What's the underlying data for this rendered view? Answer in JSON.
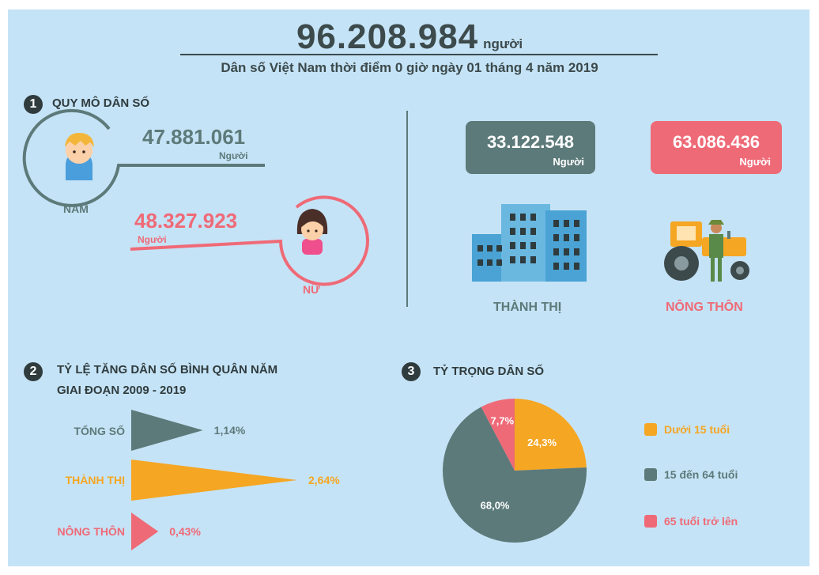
{
  "header": {
    "total": "96.208.984",
    "unit": "người",
    "subtitle": "Dân số Việt Nam thời điểm 0 giờ ngày 01 tháng 4 năm 2019"
  },
  "section1": {
    "badge": "1",
    "title": "QUY MÔ DÂN SỐ",
    "male": {
      "value": "47.881.061",
      "unit": "Người",
      "label": "NAM"
    },
    "female": {
      "value": "48.327.923",
      "unit": "Người",
      "label": "NỮ"
    },
    "urban": {
      "value": "33.122.548",
      "unit": "Người",
      "label": "THÀNH THỊ"
    },
    "rural": {
      "value": "63.086.436",
      "unit": "Người",
      "label": "NÔNG THÔN"
    }
  },
  "section2": {
    "badge": "2",
    "title_line1": "TỶ LỆ TĂNG DÂN SỐ BÌNH QUÂN NĂM",
    "title_line2": "GIAI ĐOẠN 2009 - 2019"
  },
  "section3": {
    "badge": "3",
    "title": "TỶ TRỌNG DÂN SỐ"
  },
  "colors": {
    "gray": "#5d7a7a",
    "orange": "#f5a623",
    "pink": "#ef6a77",
    "dark": "#2f3b3d"
  },
  "chart_data": [
    {
      "type": "bar",
      "orientation": "horizontal",
      "categories": [
        "TỔNG SỐ",
        "THÀNH THỊ",
        "NÔNG THÔN"
      ],
      "values": [
        1.14,
        2.64,
        0.43
      ],
      "value_labels": [
        "1,14%",
        "2,64%",
        "0,43%"
      ],
      "colors": [
        "#5d7a7a",
        "#f5a623",
        "#ef6a77"
      ]
    },
    {
      "type": "pie",
      "labels": [
        "Dưới 15 tuổi",
        "15 đến 64 tuổi",
        "65 tuổi trở lên"
      ],
      "values": [
        24.3,
        68.0,
        7.7
      ],
      "value_labels": [
        "24,3%",
        "68,0%",
        "7,7%"
      ],
      "colors": [
        "#f5a623",
        "#5d7a7a",
        "#ef6a77"
      ],
      "legend": "right"
    }
  ]
}
